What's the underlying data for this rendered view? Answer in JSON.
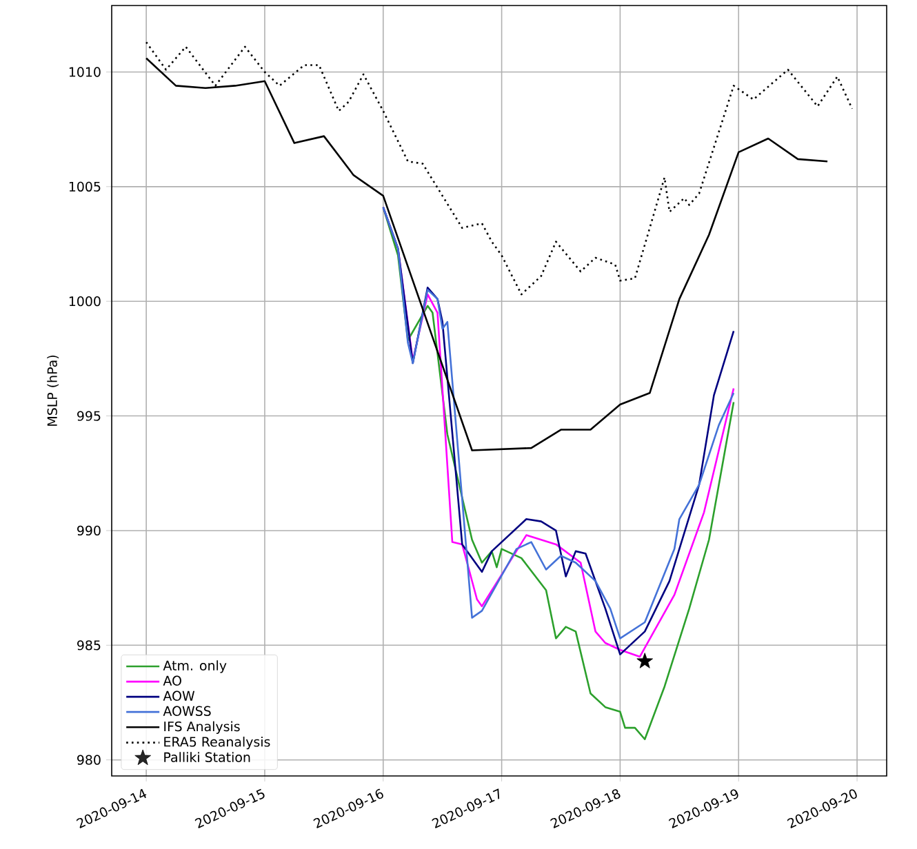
{
  "chart_data": {
    "type": "line",
    "ylabel": "MSLP (hPa)",
    "xlim": [
      "2020-09-13T17:00",
      "2020-09-20T06:00"
    ],
    "xticks": [
      "2020-09-14",
      "2020-09-15",
      "2020-09-16",
      "2020-09-17",
      "2020-09-18",
      "2020-09-19",
      "2020-09-20"
    ],
    "ylim": [
      979.3,
      1012.9
    ],
    "yticks": [
      980,
      985,
      990,
      995,
      1000,
      1005,
      1010
    ],
    "grid": true,
    "legend": "bottom left",
    "series": [
      {
        "name": "Atm. only",
        "color": "#2ca02c",
        "line_style": "solid",
        "x": [
          "2020-09-16T00:00",
          "2020-09-16T03:00",
          "2020-09-16T05:00",
          "2020-09-16T09:00",
          "2020-09-16T10:00",
          "2020-09-16T13:00",
          "2020-09-16T18:00",
          "2020-09-16T20:00",
          "2020-09-16T22:00",
          "2020-09-16T23:00",
          "2020-09-17T00:00",
          "2020-09-17T04:00",
          "2020-09-17T09:00",
          "2020-09-17T11:00",
          "2020-09-17T13:00",
          "2020-09-17T15:00",
          "2020-09-17T18:00",
          "2020-09-17T21:00",
          "2020-09-18T00:00",
          "2020-09-18T01:00",
          "2020-09-18T03:00",
          "2020-09-18T05:00",
          "2020-09-18T09:00",
          "2020-09-18T14:00",
          "2020-09-18T18:00",
          "2020-09-18T23:00"
        ],
        "values": [
          1004.1,
          1002.0,
          998.3,
          999.8,
          999.5,
          994.2,
          989.6,
          988.6,
          989.1,
          988.4,
          989.2,
          988.8,
          987.4,
          985.3,
          985.8,
          985.6,
          982.9,
          982.3,
          982.1,
          981.4,
          981.4,
          980.9,
          983.2,
          986.6,
          989.6,
          995.6
        ]
      },
      {
        "name": "AO",
        "color": "#ff00ff",
        "line_style": "solid",
        "x": [
          "2020-09-16T00:00",
          "2020-09-16T03:00",
          "2020-09-16T06:00",
          "2020-09-16T09:00",
          "2020-09-16T11:00",
          "2020-09-16T14:00",
          "2020-09-16T16:00",
          "2020-09-16T19:00",
          "2020-09-16T20:00",
          "2020-09-17T05:00",
          "2020-09-17T11:00",
          "2020-09-17T16:00",
          "2020-09-17T19:00",
          "2020-09-17T21:00",
          "2020-09-18T00:00",
          "2020-09-18T04:00",
          "2020-09-18T11:00",
          "2020-09-18T17:00",
          "2020-09-18T23:00"
        ],
        "values": [
          1004.1,
          1002.3,
          997.4,
          1000.3,
          999.5,
          989.5,
          989.4,
          987.0,
          986.7,
          989.8,
          989.4,
          988.6,
          985.6,
          985.1,
          984.8,
          984.5,
          987.2,
          990.8,
          996.2
        ]
      },
      {
        "name": "AOW",
        "color": "#000080",
        "line_style": "solid",
        "x": [
          "2020-09-16T00:00",
          "2020-09-16T03:00",
          "2020-09-16T06:00",
          "2020-09-16T09:00",
          "2020-09-16T11:00",
          "2020-09-16T12:00",
          "2020-09-16T16:00",
          "2020-09-16T20:00",
          "2020-09-16T22:00",
          "2020-09-17T05:00",
          "2020-09-17T08:00",
          "2020-09-17T11:00",
          "2020-09-17T13:00",
          "2020-09-17T15:00",
          "2020-09-17T17:00",
          "2020-09-17T21:00",
          "2020-09-18T00:00",
          "2020-09-18T05:00",
          "2020-09-18T10:00",
          "2020-09-18T16:00",
          "2020-09-18T19:00",
          "2020-09-18T23:00"
        ],
        "values": [
          1004.1,
          1002.3,
          997.3,
          1000.6,
          1000.1,
          999.1,
          989.4,
          988.2,
          989.1,
          990.5,
          990.4,
          990.0,
          988.0,
          989.1,
          989.0,
          986.6,
          984.6,
          985.6,
          987.8,
          992.0,
          995.9,
          998.7
        ]
      },
      {
        "name": "AOWSS",
        "color": "#4472d8",
        "line_style": "solid",
        "x": [
          "2020-09-16T00:00",
          "2020-09-16T03:00",
          "2020-09-16T05:00",
          "2020-09-16T06:00",
          "2020-09-16T09:00",
          "2020-09-16T11:00",
          "2020-09-16T12:00",
          "2020-09-16T13:00",
          "2020-09-16T18:00",
          "2020-09-16T20:00",
          "2020-09-17T03:00",
          "2020-09-17T06:00",
          "2020-09-17T09:00",
          "2020-09-17T12:00",
          "2020-09-17T15:00",
          "2020-09-17T19:00",
          "2020-09-17T22:00",
          "2020-09-18T00:00",
          "2020-09-18T05:00",
          "2020-09-18T11:00",
          "2020-09-18T12:00",
          "2020-09-18T16:00",
          "2020-09-18T20:00",
          "2020-09-18T23:00"
        ],
        "values": [
          1004.1,
          1002.3,
          998.2,
          997.3,
          1000.5,
          1000.1,
          998.8,
          999.1,
          986.2,
          986.5,
          989.2,
          989.5,
          988.3,
          988.9,
          988.6,
          987.8,
          986.6,
          985.3,
          986.0,
          989.2,
          990.5,
          992.0,
          994.6,
          996.0
        ]
      },
      {
        "name": "IFS Analysis",
        "color": "#000000",
        "line_style": "solid",
        "x": [
          "2020-09-14T00:00",
          "2020-09-14T06:00",
          "2020-09-14T12:00",
          "2020-09-14T18:00",
          "2020-09-15T00:00",
          "2020-09-15T06:00",
          "2020-09-15T12:00",
          "2020-09-15T18:00",
          "2020-09-16T00:00",
          "2020-09-16T18:00",
          "2020-09-17T06:00",
          "2020-09-17T12:00",
          "2020-09-17T18:00",
          "2020-09-18T00:00",
          "2020-09-18T06:00",
          "2020-09-18T12:00",
          "2020-09-18T18:00",
          "2020-09-19T00:00",
          "2020-09-19T06:00",
          "2020-09-19T12:00",
          "2020-09-19T18:00"
        ],
        "values": [
          1010.6,
          1009.4,
          1009.3,
          1009.4,
          1009.6,
          1006.9,
          1007.2,
          1005.5,
          1004.6,
          993.5,
          993.6,
          994.4,
          994.4,
          995.5,
          996.0,
          1000.1,
          1002.9,
          1006.5,
          1007.1,
          1006.2,
          1006.1
        ]
      },
      {
        "name": "ERA5 Reanalysis",
        "color": "#000000",
        "line_style": "dotted",
        "x": [
          "2020-09-14T00:00",
          "2020-09-14T04:00",
          "2020-09-14T08:00",
          "2020-09-14T14:00",
          "2020-09-14T20:00",
          "2020-09-15T00:00",
          "2020-09-15T03:00",
          "2020-09-15T08:00",
          "2020-09-15T11:00",
          "2020-09-15T15:00",
          "2020-09-15T17:00",
          "2020-09-15T20:00",
          "2020-09-16T00:00",
          "2020-09-16T05:00",
          "2020-09-16T08:00",
          "2020-09-16T16:00",
          "2020-09-16T20:00",
          "2020-09-16T22:00",
          "2020-09-17T00:00",
          "2020-09-17T04:00",
          "2020-09-17T08:00",
          "2020-09-17T11:00",
          "2020-09-17T16:00",
          "2020-09-17T19:00",
          "2020-09-17T23:00",
          "2020-09-18T00:00",
          "2020-09-18T03:00",
          "2020-09-18T09:00",
          "2020-09-18T10:00",
          "2020-09-18T13:00",
          "2020-09-18T14:00",
          "2020-09-18T16:00",
          "2020-09-18T23:00",
          "2020-09-19T03:00",
          "2020-09-19T10:00",
          "2020-09-19T16:00",
          "2020-09-19T20:00",
          "2020-09-19T23:00"
        ],
        "values": [
          1011.3,
          1010.1,
          1011.1,
          1009.4,
          1011.1,
          1010.0,
          1009.4,
          1010.3,
          1010.3,
          1008.3,
          1008.7,
          1009.9,
          1008.3,
          1006.1,
          1006.0,
          1003.2,
          1003.4,
          1002.6,
          1002.0,
          1000.3,
          1001.1,
          1002.6,
          1001.3,
          1001.9,
          1001.6,
          1000.9,
          1001.0,
          1005.4,
          1003.9,
          1004.5,
          1004.2,
          1004.7,
          1009.4,
          1008.8,
          1010.1,
          1008.5,
          1009.8,
          1008.4
        ]
      },
      {
        "name": "Palliki Station",
        "type": "scatter",
        "color": "#000000",
        "marker": "star",
        "x": [
          "2020-09-18T05:00"
        ],
        "values": [
          984.3
        ]
      }
    ]
  }
}
